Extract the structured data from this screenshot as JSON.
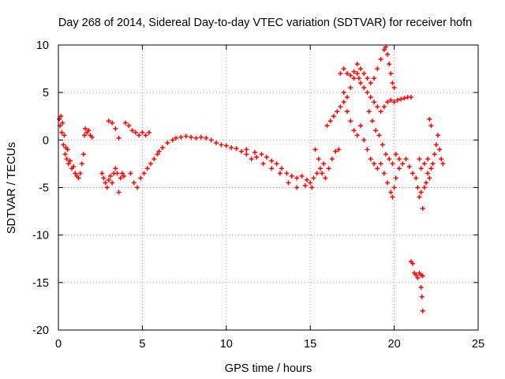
{
  "chart_data": {
    "type": "scatter",
    "title": "Day 268 of 2014, Sidereal Day-to-day VTEC variation (SDTVAR) for receiver hofn",
    "xlabel": "GPS time / hours",
    "ylabel": "SDTVAR / TECUs",
    "xlim": [
      0,
      25
    ],
    "ylim": [
      -20,
      10
    ],
    "xticks": [
      0,
      5,
      10,
      15,
      20,
      25
    ],
    "yticks": [
      10,
      5,
      0,
      -5,
      -10,
      -15,
      -20
    ],
    "grid": true,
    "marker": "+",
    "color": "#ff0000",
    "series": [
      {
        "name": "SDTVAR",
        "points": [
          [
            0.05,
            2.2
          ],
          [
            0.1,
            1.5
          ],
          [
            0.15,
            2.5
          ],
          [
            0.2,
            0.8
          ],
          [
            0.25,
            1.8
          ],
          [
            0.3,
            -0.5
          ],
          [
            0.35,
            0.5
          ],
          [
            0.4,
            -1.5
          ],
          [
            0.45,
            -0.8
          ],
          [
            0.5,
            -2.0
          ],
          [
            0.55,
            -1.0
          ],
          [
            0.6,
            -2.5
          ],
          [
            0.7,
            -2.2
          ],
          [
            0.8,
            -3.0
          ],
          [
            0.9,
            -2.8
          ],
          [
            1.0,
            -3.5
          ],
          [
            1.1,
            -3.8
          ],
          [
            1.2,
            -4.0
          ],
          [
            1.3,
            -3.5
          ],
          [
            1.4,
            -2.5
          ],
          [
            1.5,
            -1.5
          ],
          [
            1.55,
            0.5
          ],
          [
            1.6,
            1.2
          ],
          [
            1.7,
            0.8
          ],
          [
            1.8,
            1.0
          ],
          [
            1.9,
            0.5
          ],
          [
            2.0,
            0.3
          ],
          [
            2.6,
            -3.5
          ],
          [
            2.7,
            -4.0
          ],
          [
            2.8,
            -4.5
          ],
          [
            2.9,
            -5.0
          ],
          [
            3.0,
            -4.2
          ],
          [
            3.1,
            -3.8
          ],
          [
            3.2,
            -4.5
          ],
          [
            3.3,
            -3.5
          ],
          [
            3.4,
            -3.0
          ],
          [
            3.5,
            -3.5
          ],
          [
            3.6,
            -5.5
          ],
          [
            3.7,
            -4.0
          ],
          [
            3.8,
            -3.5
          ],
          [
            3.9,
            -3.8
          ],
          [
            3.0,
            2.0
          ],
          [
            3.2,
            1.8
          ],
          [
            3.4,
            1.2
          ],
          [
            3.6,
            0.2
          ],
          [
            4.0,
            1.8
          ],
          [
            4.2,
            1.5
          ],
          [
            4.4,
            1.0
          ],
          [
            4.6,
            0.8
          ],
          [
            4.8,
            0.5
          ],
          [
            5.0,
            0.8
          ],
          [
            5.2,
            0.5
          ],
          [
            5.4,
            0.8
          ],
          [
            4.3,
            -3.5
          ],
          [
            4.5,
            -4.5
          ],
          [
            4.7,
            -5.0
          ],
          [
            4.9,
            -4.0
          ],
          [
            5.1,
            -3.5
          ],
          [
            5.3,
            -3.0
          ],
          [
            5.5,
            -2.5
          ],
          [
            5.7,
            -2.0
          ],
          [
            5.9,
            -1.5
          ],
          [
            6.0,
            -1.2
          ],
          [
            6.2,
            -0.8
          ],
          [
            6.5,
            -0.3
          ],
          [
            6.8,
            0.0
          ],
          [
            7.0,
            0.2
          ],
          [
            7.3,
            0.3
          ],
          [
            7.6,
            0.4
          ],
          [
            7.9,
            0.3
          ],
          [
            8.2,
            0.2
          ],
          [
            8.5,
            0.3
          ],
          [
            8.8,
            0.2
          ],
          [
            9.1,
            0.0
          ],
          [
            9.4,
            -0.3
          ],
          [
            9.7,
            -0.5
          ],
          [
            10.0,
            -0.6
          ],
          [
            10.3,
            -0.8
          ],
          [
            10.6,
            -0.9
          ],
          [
            10.9,
            -1.2
          ],
          [
            11.2,
            -1.5
          ],
          [
            11.5,
            -2.0
          ],
          [
            11.8,
            -1.8
          ],
          [
            12.1,
            -1.5
          ],
          [
            12.4,
            -1.8
          ],
          [
            12.7,
            -2.2
          ],
          [
            13.0,
            -2.5
          ],
          [
            13.3,
            -3.0
          ],
          [
            13.6,
            -3.5
          ],
          [
            13.9,
            -3.8
          ],
          [
            14.2,
            -4.0
          ],
          [
            14.5,
            -3.8
          ],
          [
            14.8,
            -4.2
          ],
          [
            15.0,
            -4.5
          ],
          [
            15.2,
            -4.0
          ],
          [
            15.4,
            -3.5
          ],
          [
            15.6,
            -3.0
          ],
          [
            15.8,
            -2.5
          ],
          [
            11.2,
            -1.0
          ],
          [
            11.7,
            -1.3
          ],
          [
            12.2,
            -2.5
          ],
          [
            12.7,
            -3.0
          ],
          [
            13.2,
            -3.5
          ],
          [
            13.7,
            -4.5
          ],
          [
            14.2,
            -5.0
          ],
          [
            14.7,
            -4.8
          ],
          [
            15.1,
            -5.0
          ],
          [
            15.3,
            -1.0
          ],
          [
            15.5,
            -2.0
          ],
          [
            15.7,
            -3.5
          ],
          [
            15.9,
            -4.0
          ],
          [
            16.1,
            -3.0
          ],
          [
            16.3,
            -2.0
          ],
          [
            16.5,
            -1.2
          ],
          [
            16.7,
            -1.0
          ],
          [
            16.0,
            1.5
          ],
          [
            16.2,
            2.0
          ],
          [
            16.4,
            2.5
          ],
          [
            16.6,
            3.0
          ],
          [
            16.8,
            3.5
          ],
          [
            17.0,
            4.0
          ],
          [
            17.2,
            4.5
          ],
          [
            17.4,
            5.5
          ],
          [
            17.6,
            6.5
          ],
          [
            17.8,
            7.0
          ],
          [
            17.9,
            6.5
          ],
          [
            18.0,
            6.0
          ],
          [
            18.2,
            5.5
          ],
          [
            18.4,
            5.0
          ],
          [
            18.6,
            4.5
          ],
          [
            18.8,
            4.0
          ],
          [
            19.0,
            3.5
          ],
          [
            19.2,
            3.0
          ],
          [
            19.4,
            3.5
          ],
          [
            19.6,
            4.0
          ],
          [
            19.8,
            4.2
          ],
          [
            20.0,
            4.0
          ],
          [
            20.2,
            4.2
          ],
          [
            20.4,
            4.3
          ],
          [
            20.6,
            4.4
          ],
          [
            20.8,
            4.5
          ],
          [
            21.0,
            4.5
          ],
          [
            16.8,
            7.0
          ],
          [
            17.0,
            7.5
          ],
          [
            17.2,
            7.0
          ],
          [
            17.4,
            6.8
          ],
          [
            17.6,
            7.2
          ],
          [
            17.8,
            8.0
          ],
          [
            18.0,
            7.5
          ],
          [
            18.2,
            7.0
          ],
          [
            18.4,
            6.5
          ],
          [
            18.6,
            6.0
          ],
          [
            18.8,
            6.5
          ],
          [
            19.0,
            7.5
          ],
          [
            19.2,
            8.5
          ],
          [
            19.4,
            9.5
          ],
          [
            19.5,
            9.8
          ],
          [
            19.6,
            9.0
          ],
          [
            19.7,
            8.0
          ],
          [
            19.8,
            7.0
          ],
          [
            19.9,
            6.0
          ],
          [
            20.0,
            5.5
          ],
          [
            17.0,
            5.0
          ],
          [
            17.2,
            3.0
          ],
          [
            17.4,
            2.0
          ],
          [
            17.6,
            1.0
          ],
          [
            17.8,
            0.5
          ],
          [
            18.0,
            1.5
          ],
          [
            18.2,
            0.0
          ],
          [
            18.4,
            -1.0
          ],
          [
            18.6,
            -2.0
          ],
          [
            18.8,
            -2.5
          ],
          [
            19.0,
            -3.0
          ],
          [
            19.2,
            -2.5
          ],
          [
            19.4,
            -3.5
          ],
          [
            19.6,
            -4.5
          ],
          [
            19.8,
            -5.5
          ],
          [
            19.9,
            -6.0
          ],
          [
            20.0,
            -5.0
          ],
          [
            20.1,
            -4.0
          ],
          [
            20.3,
            -3.0
          ],
          [
            20.5,
            -2.5
          ],
          [
            20.7,
            -2.0
          ],
          [
            20.9,
            -2.8
          ],
          [
            21.1,
            -3.5
          ],
          [
            21.3,
            -4.0
          ],
          [
            18.5,
            3.0
          ],
          [
            18.7,
            2.0
          ],
          [
            18.9,
            1.0
          ],
          [
            19.1,
            0.5
          ],
          [
            19.3,
            -0.5
          ],
          [
            19.5,
            -1.5
          ],
          [
            19.7,
            -2.0
          ],
          [
            19.9,
            -2.5
          ],
          [
            20.1,
            -1.5
          ],
          [
            20.3,
            -2.0
          ],
          [
            21.0,
            -12.8
          ],
          [
            21.1,
            -13.0
          ],
          [
            21.2,
            -14.0
          ],
          [
            21.3,
            -14.2
          ],
          [
            21.4,
            -14.5
          ],
          [
            21.5,
            -14.0
          ],
          [
            21.6,
            -14.2
          ],
          [
            21.7,
            -14.3
          ],
          [
            21.6,
            -15.5
          ],
          [
            21.65,
            -16.5
          ],
          [
            21.7,
            -18.0
          ],
          [
            21.4,
            -5.0
          ],
          [
            21.5,
            -6.0
          ],
          [
            21.6,
            -5.5
          ],
          [
            21.7,
            -7.2
          ],
          [
            21.8,
            -5.0
          ],
          [
            21.9,
            -4.5
          ],
          [
            22.0,
            -3.5
          ],
          [
            22.1,
            -4.0
          ],
          [
            22.2,
            -3.0
          ],
          [
            22.3,
            -2.5
          ],
          [
            22.4,
            -1.5
          ],
          [
            22.5,
            -0.5
          ],
          [
            22.6,
            0.5
          ],
          [
            22.7,
            -1.0
          ],
          [
            22.8,
            -2.0
          ],
          [
            22.9,
            -2.5
          ],
          [
            22.1,
            2.2
          ],
          [
            22.2,
            1.5
          ],
          [
            21.5,
            -2.0
          ],
          [
            21.6,
            -3.0
          ],
          [
            21.8,
            -2.5
          ],
          [
            22.0,
            -2.0
          ]
        ]
      }
    ]
  }
}
